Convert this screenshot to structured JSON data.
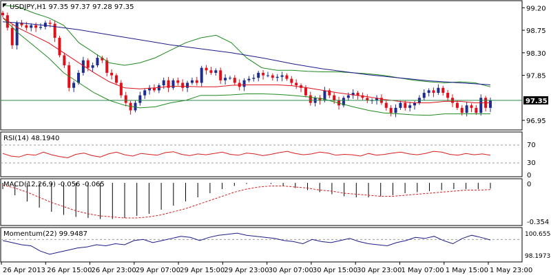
{
  "colors": {
    "background": "#ffffff",
    "frame": "#000000",
    "bull_candle": "#1d2c8e",
    "bear_candle": "#e0101a",
    "ma_slow": "#1a1a8a",
    "ma_fast": "#e0101a",
    "bollinger": "#1f8a1f",
    "price_line": "#2a8a4a",
    "rsi": "#d81c1c",
    "macd_signal": "#d81c1c",
    "macd_hist": "#000000",
    "momentum": "#1a1a8a",
    "level_line": "#9a9a9a"
  },
  "main_panel": {
    "title": "USDJPY,H1  97.35 97.37 97.28 97.35",
    "price_tag": "97.35",
    "y_ticks": [
      "99.20",
      "98.75",
      "98.30",
      "97.85",
      "96.95"
    ]
  },
  "rsi_panel": {
    "title": "RSI(14) 48.1940",
    "y_ticks": [
      "70",
      "30",
      "0"
    ]
  },
  "macd_panel": {
    "title": "MACD(12,26,9) -0.056 -0.065",
    "y_ticks": [
      "0",
      "-0.354"
    ]
  },
  "momentum_panel": {
    "title": "Momentum(22) 99.9487",
    "y_ticks": [
      "100.6554",
      "98.1973"
    ]
  },
  "x_axis": {
    "ticks": [
      "26 Apr 2013",
      "26 Apr 15:00",
      "26 Apr 23:00",
      "29 Apr 07:00",
      "29 Apr 15:00",
      "29 Apr 23:00",
      "30 Apr 07:00",
      "30 Apr 15:00",
      "30 Apr 23:00",
      "1 May 07:00",
      "1 May 15:00",
      "1 May 23:00"
    ]
  },
  "chart_data": {
    "type": "candlestick",
    "symbol": "USDJPY",
    "timeframe": "H1",
    "price_axis_range": [
      96.8,
      99.3
    ],
    "closes": [
      99.05,
      98.8,
      98.45,
      98.9,
      98.85,
      98.8,
      98.85,
      98.8,
      98.82,
      98.9,
      98.88,
      98.6,
      98.25,
      98.05,
      97.6,
      97.7,
      97.9,
      98.15,
      98.0,
      98.05,
      98.2,
      98.15,
      97.9,
      97.85,
      97.7,
      97.45,
      97.3,
      97.15,
      97.3,
      97.45,
      97.55,
      97.6,
      97.55,
      97.65,
      97.75,
      97.6,
      97.75,
      97.7,
      97.6,
      97.7,
      97.75,
      97.7,
      98.0,
      97.95,
      97.9,
      97.95,
      97.75,
      97.8,
      97.8,
      97.7,
      97.62,
      97.75,
      97.78,
      97.8,
      97.9,
      97.85,
      97.85,
      97.8,
      97.82,
      97.85,
      97.78,
      97.7,
      97.65,
      97.6,
      97.45,
      97.3,
      97.4,
      97.35,
      97.55,
      97.45,
      97.35,
      97.25,
      97.4,
      97.45,
      97.5,
      97.45,
      97.4,
      97.35,
      97.35,
      97.4,
      97.3,
      97.2,
      97.1,
      97.2,
      97.3,
      97.2,
      97.25,
      97.3,
      97.4,
      97.5,
      97.55,
      97.5,
      97.6,
      97.5,
      97.4,
      97.3,
      97.2,
      97.1,
      97.25,
      97.2,
      97.1,
      97.4,
      97.2,
      97.35
    ],
    "ma_slow": [
      98.92,
      98.9,
      98.87,
      98.84,
      98.8,
      98.76,
      98.71,
      98.66,
      98.61,
      98.56,
      98.51,
      98.46,
      98.42,
      98.38,
      98.34,
      98.3,
      98.25,
      98.2,
      98.14,
      98.08,
      98.03,
      97.98,
      97.94,
      97.9,
      97.86,
      97.83,
      97.8,
      97.77,
      97.74,
      97.72,
      97.7,
      97.68,
      97.66
    ],
    "ma_fast": [
      99.0,
      98.8,
      98.65,
      98.5,
      98.3,
      98.1,
      97.9,
      97.72,
      97.6,
      97.58,
      97.6,
      97.63,
      97.63,
      97.62,
      97.62,
      97.65,
      97.66,
      97.66,
      97.66,
      97.64,
      97.6,
      97.55,
      97.5,
      97.46,
      97.42,
      97.37,
      97.33,
      97.3,
      97.3,
      97.33,
      97.33,
      97.3,
      97.3
    ],
    "bollinger_upper": [
      99.25,
      99.22,
      99.1,
      99.0,
      98.85,
      98.5,
      98.3,
      98.1,
      98.05,
      98.1,
      98.2,
      98.35,
      98.5,
      98.6,
      98.65,
      98.5,
      98.2,
      98.0,
      97.95,
      97.95,
      97.93,
      97.92,
      97.92,
      97.9,
      97.88,
      97.85,
      97.8,
      97.75,
      97.72,
      97.7,
      97.72,
      97.7,
      97.62
    ],
    "bollinger_lower": [
      99.0,
      98.7,
      98.45,
      98.2,
      97.9,
      97.7,
      97.5,
      97.35,
      97.25,
      97.2,
      97.22,
      97.3,
      97.35,
      97.45,
      97.45,
      97.46,
      97.48,
      97.48,
      97.47,
      97.45,
      97.42,
      97.38,
      97.3,
      97.22,
      97.15,
      97.1,
      97.08,
      97.06,
      97.05,
      97.08,
      97.08,
      97.08,
      97.08
    ],
    "macd_hist": [
      -0.06,
      -0.12,
      -0.18,
      -0.24,
      -0.28,
      -0.31,
      -0.33,
      -0.34,
      -0.35,
      -0.35,
      -0.34,
      -0.32,
      -0.3,
      -0.26,
      -0.22,
      -0.18,
      -0.14,
      -0.1,
      -0.06,
      -0.03,
      -0.01,
      0.0,
      -0.01,
      -0.03,
      -0.05,
      -0.07,
      -0.09,
      -0.11,
      -0.13,
      -0.14,
      -0.14,
      -0.13,
      -0.12,
      -0.1,
      -0.09,
      -0.08,
      -0.07,
      -0.06,
      -0.06,
      -0.06,
      -0.056
    ],
    "macd_signal": [
      -0.02,
      -0.05,
      -0.09,
      -0.14,
      -0.19,
      -0.23,
      -0.27,
      -0.3,
      -0.32,
      -0.33,
      -0.34,
      -0.34,
      -0.33,
      -0.31,
      -0.28,
      -0.25,
      -0.21,
      -0.17,
      -0.13,
      -0.09,
      -0.06,
      -0.04,
      -0.03,
      -0.03,
      -0.04,
      -0.05,
      -0.07,
      -0.08,
      -0.1,
      -0.11,
      -0.12,
      -0.13,
      -0.13,
      -0.12,
      -0.11,
      -0.1,
      -0.09,
      -0.08,
      -0.07,
      -0.07,
      -0.065
    ],
    "rsi": [
      52,
      46,
      44,
      50,
      48,
      55,
      49,
      45,
      42,
      50,
      53,
      47,
      44,
      51,
      55,
      49,
      46,
      52,
      50,
      48,
      54,
      56,
      50,
      47,
      51,
      49,
      52,
      55,
      50,
      48,
      53,
      51,
      47,
      50,
      54,
      57,
      52,
      49,
      51,
      55,
      53,
      48,
      50,
      49,
      46,
      52,
      48,
      50,
      53,
      55,
      51,
      49,
      52,
      57,
      55,
      50,
      48,
      52,
      49,
      51,
      48
    ],
    "rsi_range": [
      0,
      100
    ],
    "rsi_levels": [
      70,
      30
    ],
    "momentum": [
      99.9,
      99.7,
      99.5,
      99.4,
      98.9,
      98.6,
      98.8,
      99.0,
      99.2,
      99.3,
      99.5,
      99.4,
      99.6,
      99.5,
      99.9,
      100.0,
      99.7,
      99.9,
      100.1,
      100.3,
      100.2,
      99.9,
      100.2,
      100.4,
      100.5,
      100.6,
      100.4,
      100.3,
      100.2,
      100.1,
      99.9,
      99.8,
      99.6,
      100.0,
      99.8,
      99.7,
      99.9,
      100.1,
      99.8,
      99.6,
      99.5,
      99.4,
      99.7,
      99.9,
      100.2,
      100.1,
      100.3,
      99.9,
      99.6,
      100.1,
      100.4,
      100.2,
      99.95
    ],
    "momentum_range": [
      98.0,
      101.0
    ],
    "momentum_level": 100.0
  }
}
